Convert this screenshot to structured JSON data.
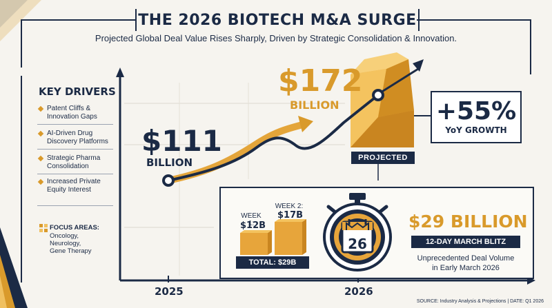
{
  "header": {
    "title": "THE 2026 BIOTECH M&A SURGE",
    "subtitle": "Projected Global Deal Value Rises Sharply, Driven by Strategic Consolidation & Innovation."
  },
  "sidebar": {
    "title": "KEY DRIVERS",
    "items": [
      {
        "label_1": "Patent Cliffs &",
        "label_2": "Innovation Gaps"
      },
      {
        "label_1": "AI-Driven Drug",
        "label_2": "Discovery Platforms"
      },
      {
        "label_1": "Strategic Pharma",
        "label_2": "Consolidation"
      },
      {
        "label_1": "Increased Private",
        "label_2": "Equity Interest"
      }
    ],
    "focus": {
      "heading": "FOCUS AREAS:",
      "line_1": "Oncology,",
      "line_2": "Neurology,",
      "line_3": "Gene Therapy"
    }
  },
  "main": {
    "value_2025": "$111",
    "value_2025_unit": "BILLION",
    "value_2026": "$172",
    "value_2026_unit": "BILLION",
    "growth_value": "+55%",
    "growth_label": "YoY GROWTH",
    "projected_label": "PROJECTED",
    "axis_2025": "2025",
    "axis_2026": "2026"
  },
  "inset": {
    "week1_label": "WEEK 1:",
    "week1_value": "$12B",
    "week2_label": "WEEK 2:",
    "week2_value": "$17B",
    "total_label": "TOTAL: $29B",
    "calendar_day": "26",
    "blitz_value": "$29 BILLION",
    "blitz_label": "12-DAY MARCH BLITZ",
    "desc_1": "Unprecedented Deal Volume",
    "desc_2": "in Early March 2026"
  },
  "footer": {
    "source": "SOURCE: Industry Analysis & Projections | DATE: Q1 2026"
  },
  "colors": {
    "navy": "#1b2a45",
    "gold": "#d99a2b",
    "gold_light": "#f0c060",
    "background": "#f6f4ef"
  }
}
